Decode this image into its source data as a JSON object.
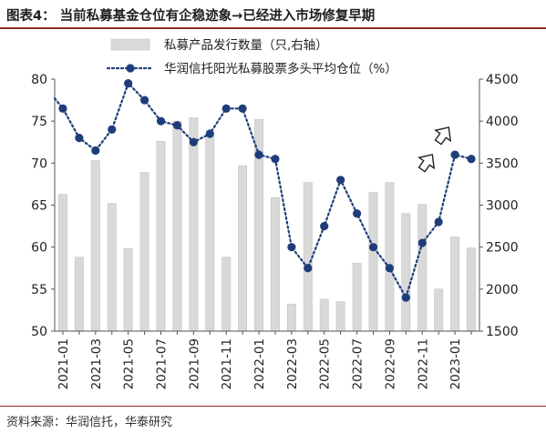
{
  "header": {
    "title": "图表4：  当前私募基金仓位有企稳迹象→已经进入市场修复早期"
  },
  "footer": {
    "source": "资料来源：华润信托，华泰研究"
  },
  "chart_data": {
    "type": "bar+line",
    "x": [
      "2021-01",
      "2021-02",
      "2021-03",
      "2021-04",
      "2021-05",
      "2021-06",
      "2021-07",
      "2021-08",
      "2021-09",
      "2021-10",
      "2021-11",
      "2021-12",
      "2022-01",
      "2022-02",
      "2022-03",
      "2022-04",
      "2022-05",
      "2022-06",
      "2022-07",
      "2022-08",
      "2022-09",
      "2022-10",
      "2022-11",
      "2022-12",
      "2023-01",
      "2023-02"
    ],
    "x_tick_labels": [
      "2021-01",
      "2021-03",
      "2021-05",
      "2021-07",
      "2021-09",
      "2021-11",
      "2022-01",
      "2022-03",
      "2022-05",
      "2022-07",
      "2022-09",
      "2022-11",
      "2023-01"
    ],
    "left_axis": {
      "ticks": [
        "50",
        "55",
        "60",
        "65",
        "70",
        "75",
        "80"
      ],
      "ylim": [
        50,
        80
      ]
    },
    "right_axis": {
      "ticks": [
        "1500",
        "2000",
        "2500",
        "3000",
        "3500",
        "4000",
        "4500"
      ],
      "ylim": [
        1500,
        4500
      ]
    },
    "series": [
      {
        "name": "私募产品发行数量（只,右轴）",
        "kind": "bar",
        "axis": "right",
        "color": "#d9d9d9",
        "values": [
          3130,
          2380,
          3530,
          3020,
          2480,
          3390,
          3760,
          4000,
          4040,
          3830,
          2380,
          3470,
          4020,
          3090,
          1820,
          3270,
          1880,
          1850,
          2310,
          3150,
          3270,
          2900,
          3010,
          2000,
          2620,
          2490
        ]
      },
      {
        "name": "华润信托阳光私募股票多头平均仓位（%）",
        "kind": "line",
        "axis": "left",
        "color": "#1f3d7a",
        "values": [
          76.5,
          73.0,
          71.5,
          74.0,
          79.5,
          77.5,
          75.0,
          74.5,
          72.5,
          73.5,
          76.5,
          76.5,
          71.0,
          70.5,
          60.0,
          57.5,
          62.5,
          68.0,
          64.0,
          60.0,
          57.5,
          54.0,
          60.5,
          63.0,
          71.0,
          70.5
        ]
      }
    ],
    "legend_position": "top-center",
    "gridlines": false,
    "annotations": [
      "arrow-up-markers"
    ]
  }
}
